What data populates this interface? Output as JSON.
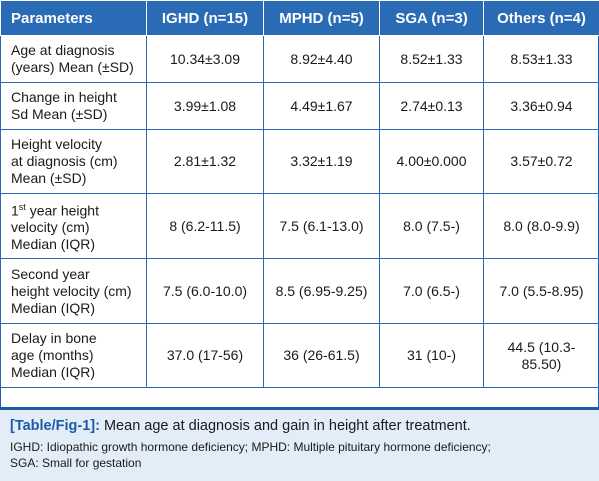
{
  "table": {
    "headers": [
      "Parameters",
      "IGHD (n=15)",
      "MPHD (n=5)",
      "SGA (n=3)",
      "Others (n=4)"
    ],
    "rows": [
      {
        "label": "Age at diagnosis\n(years) Mean (±SD)",
        "values": [
          "10.34±3.09",
          "8.92±4.40",
          "8.52±1.33",
          "8.53±1.33"
        ]
      },
      {
        "label": "Change in height\nSd Mean (±SD)",
        "values": [
          "3.99±1.08",
          "4.49±1.67",
          "2.74±0.13",
          "3.36±0.94"
        ]
      },
      {
        "label": "Height velocity\nat diagnosis (cm)\nMean (±SD)",
        "values": [
          "2.81±1.32",
          "3.32±1.19",
          "4.00±0.000",
          "3.57±0.72"
        ]
      },
      {
        "label_prefix": "1",
        "label_sup": "st",
        "label": " year height\nvelocity (cm)\nMedian (IQR)",
        "values": [
          "8 (6.2-11.5)",
          "7.5 (6.1-13.0)",
          "8.0 (7.5-)",
          "8.0 (8.0-9.9)"
        ]
      },
      {
        "label": "Second year\nheight velocity (cm)\nMedian (IQR)",
        "values": [
          "7.5 (6.0-10.0)",
          "8.5 (6.95-9.25)",
          "7.0 (6.5-)",
          "7.0 (5.5-8.95)"
        ]
      },
      {
        "label": "Delay in bone\nage (months)\nMedian (IQR)",
        "values": [
          "37.0 (17-56)",
          "36 (26-61.5)",
          "31 (10-)",
          "44.5 (10.3-\n85.50)"
        ]
      }
    ]
  },
  "caption": {
    "tag": "[Table/Fig-1]:",
    "title": " Mean age at diagnosis and gain in height after treatment.",
    "abbreviations_line1": "IGHD: Idiopathic growth hormone deficiency; MPHD: Multiple pituitary hormone deficiency;",
    "abbreviations_line2": "SGA: Small for gestation"
  },
  "colors": {
    "header_bg": "#2a6bb5",
    "caption_bg": "#e3edf7",
    "accent": "#1f5aa6"
  }
}
